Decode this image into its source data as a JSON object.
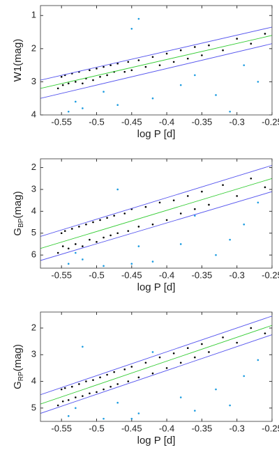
{
  "chart_data": [
    {
      "type": "scatter",
      "y_inverted": true,
      "xlabel": "log P [d]",
      "ylabel": {
        "main": "W1",
        "unit": "(mag)"
      },
      "xlim": [
        -0.58,
        -0.25
      ],
      "xticks": [
        -0.55,
        -0.5,
        -0.45,
        -0.4,
        -0.35,
        -0.3,
        -0.25
      ],
      "ylim": [
        0.7,
        4
      ],
      "yticks": [
        1,
        2,
        3,
        4
      ],
      "series": [
        {
          "mode": "markers",
          "color": "#000000",
          "x": [
            -0.555,
            -0.55,
            -0.548,
            -0.545,
            -0.54,
            -0.535,
            -0.53,
            -0.525,
            -0.52,
            -0.515,
            -0.51,
            -0.505,
            -0.5,
            -0.495,
            -0.49,
            -0.485,
            -0.48,
            -0.475,
            -0.47,
            -0.46,
            -0.455,
            -0.45,
            -0.44,
            -0.43,
            -0.42,
            -0.41,
            -0.4,
            -0.39,
            -0.38,
            -0.37,
            -0.36,
            -0.35,
            -0.34,
            -0.32,
            -0.3,
            -0.28,
            -0.26
          ],
          "values": [
            3.2,
            2.85,
            3.1,
            2.8,
            3.05,
            2.75,
            3.0,
            2.7,
            3.05,
            2.9,
            2.65,
            2.95,
            2.6,
            2.85,
            2.55,
            2.8,
            2.5,
            2.7,
            2.45,
            2.7,
            2.4,
            2.65,
            2.35,
            2.55,
            2.25,
            2.5,
            2.15,
            2.4,
            2.05,
            2.3,
            1.95,
            2.2,
            1.9,
            2.05,
            1.7,
            1.85,
            1.55
          ]
        },
        {
          "mode": "markers",
          "color": "#1a9be0",
          "x": [
            -0.54,
            -0.53,
            -0.52,
            -0.49,
            -0.47,
            -0.44,
            -0.42,
            -0.38,
            -0.36,
            -0.33,
            -0.31,
            -0.29,
            -0.27,
            -0.45
          ],
          "values": [
            3.9,
            3.6,
            3.8,
            3.3,
            3.7,
            1.1,
            3.5,
            3.1,
            2.8,
            3.4,
            3.9,
            2.5,
            3.0,
            1.4
          ]
        },
        {
          "mode": "line",
          "color": "#5555ee",
          "x": [
            -0.58,
            -0.25
          ],
          "values": [
            2.95,
            1.35
          ]
        },
        {
          "mode": "line",
          "color": "#5555ee",
          "x": [
            -0.58,
            -0.25
          ],
          "values": [
            3.5,
            1.85
          ]
        },
        {
          "mode": "line",
          "color": "#33cc33",
          "x": [
            -0.58,
            -0.25
          ],
          "values": [
            3.2,
            1.6
          ]
        }
      ]
    },
    {
      "type": "scatter",
      "y_inverted": true,
      "xlabel": "log P [d]",
      "ylabel": {
        "main": "G",
        "sub": "BP",
        "unit": "(mag)"
      },
      "xlim": [
        -0.58,
        -0.25
      ],
      "xticks": [
        -0.55,
        -0.5,
        -0.45,
        -0.4,
        -0.35,
        -0.3,
        -0.25
      ],
      "ylim": [
        1.6,
        6.6
      ],
      "yticks": [
        2,
        3,
        4,
        5,
        6
      ],
      "series": [
        {
          "mode": "markers",
          "color": "#000000",
          "x": [
            -0.555,
            -0.55,
            -0.548,
            -0.545,
            -0.54,
            -0.535,
            -0.53,
            -0.525,
            -0.52,
            -0.515,
            -0.51,
            -0.505,
            -0.5,
            -0.495,
            -0.49,
            -0.485,
            -0.48,
            -0.475,
            -0.47,
            -0.46,
            -0.455,
            -0.45,
            -0.44,
            -0.43,
            -0.42,
            -0.41,
            -0.4,
            -0.39,
            -0.38,
            -0.37,
            -0.36,
            -0.35,
            -0.34,
            -0.32,
            -0.3,
            -0.28,
            -0.26
          ],
          "values": [
            5.9,
            5.0,
            5.6,
            4.9,
            5.7,
            4.8,
            5.5,
            4.7,
            5.6,
            4.6,
            5.3,
            4.5,
            5.4,
            4.4,
            5.2,
            4.3,
            5.1,
            4.2,
            5.0,
            4.1,
            4.9,
            3.9,
            4.7,
            3.8,
            4.6,
            3.6,
            4.4,
            3.5,
            4.1,
            3.3,
            3.9,
            3.1,
            3.7,
            2.8,
            3.3,
            2.5,
            2.9
          ]
        },
        {
          "mode": "markers",
          "color": "#1a9be0",
          "x": [
            -0.54,
            -0.53,
            -0.52,
            -0.49,
            -0.47,
            -0.44,
            -0.42,
            -0.38,
            -0.36,
            -0.33,
            -0.31,
            -0.29,
            -0.27,
            -0.45
          ],
          "values": [
            6.4,
            5.9,
            6.2,
            6.5,
            3.0,
            5.6,
            6.3,
            5.5,
            4.2,
            6.0,
            5.3,
            4.6,
            3.6,
            6.4
          ]
        },
        {
          "mode": "line",
          "color": "#5555ee",
          "x": [
            -0.58,
            -0.25
          ],
          "values": [
            5.15,
            1.9
          ]
        },
        {
          "mode": "line",
          "color": "#5555ee",
          "x": [
            -0.58,
            -0.25
          ],
          "values": [
            6.25,
            3.1
          ]
        },
        {
          "mode": "line",
          "color": "#33cc33",
          "x": [
            -0.58,
            -0.25
          ],
          "values": [
            5.7,
            2.5
          ]
        }
      ]
    },
    {
      "type": "scatter",
      "y_inverted": true,
      "xlabel": "log P [d]",
      "ylabel": {
        "main": "G",
        "sub": "RP",
        "unit": "(mag)"
      },
      "xlim": [
        -0.58,
        -0.25
      ],
      "xticks": [
        -0.55,
        -0.5,
        -0.45,
        -0.4,
        -0.35,
        -0.3,
        -0.25
      ],
      "ylim": [
        1.4,
        5.5
      ],
      "yticks": [
        2,
        3,
        4,
        5
      ],
      "series": [
        {
          "mode": "markers",
          "color": "#000000",
          "x": [
            -0.555,
            -0.55,
            -0.548,
            -0.545,
            -0.54,
            -0.535,
            -0.53,
            -0.525,
            -0.52,
            -0.515,
            -0.51,
            -0.505,
            -0.5,
            -0.495,
            -0.49,
            -0.485,
            -0.48,
            -0.475,
            -0.47,
            -0.46,
            -0.455,
            -0.45,
            -0.44,
            -0.43,
            -0.42,
            -0.41,
            -0.4,
            -0.39,
            -0.38,
            -0.37,
            -0.36,
            -0.35,
            -0.34,
            -0.32,
            -0.3,
            -0.28,
            -0.26
          ],
          "values": [
            4.9,
            4.3,
            4.75,
            4.25,
            4.7,
            4.2,
            4.6,
            4.1,
            4.55,
            4.0,
            4.45,
            3.95,
            4.4,
            3.85,
            4.3,
            3.75,
            4.2,
            3.65,
            4.1,
            3.55,
            4.0,
            3.45,
            3.85,
            3.3,
            3.7,
            3.1,
            3.5,
            2.95,
            3.3,
            2.75,
            3.1,
            2.6,
            2.9,
            2.35,
            2.55,
            2.0,
            2.2
          ]
        },
        {
          "mode": "markers",
          "color": "#1a9be0",
          "x": [
            -0.54,
            -0.53,
            -0.52,
            -0.49,
            -0.47,
            -0.44,
            -0.42,
            -0.38,
            -0.36,
            -0.33,
            -0.31,
            -0.29,
            -0.27,
            -0.45
          ],
          "values": [
            5.3,
            5.0,
            2.7,
            5.4,
            4.8,
            5.2,
            2.9,
            4.6,
            5.1,
            4.3,
            4.9,
            3.8,
            3.2,
            5.4
          ]
        },
        {
          "mode": "line",
          "color": "#5555ee",
          "x": [
            -0.58,
            -0.25
          ],
          "values": [
            4.5,
            1.55
          ]
        },
        {
          "mode": "line",
          "color": "#5555ee",
          "x": [
            -0.58,
            -0.25
          ],
          "values": [
            5.2,
            2.25
          ]
        },
        {
          "mode": "line",
          "color": "#33cc33",
          "x": [
            -0.58,
            -0.25
          ],
          "values": [
            4.85,
            1.9
          ]
        }
      ]
    }
  ]
}
